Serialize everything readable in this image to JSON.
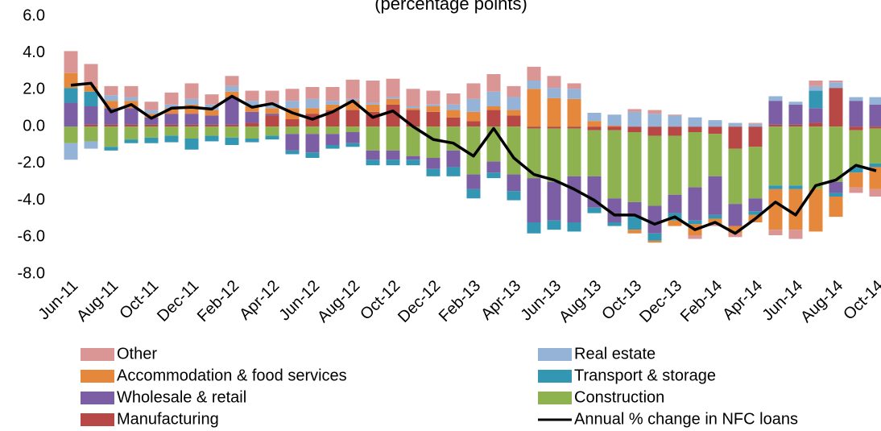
{
  "chart_data": {
    "type": "bar",
    "title": "(percentage points)",
    "categories": [
      "Jun-11",
      null,
      "Aug-11",
      null,
      "Oct-11",
      null,
      "Dec-11",
      null,
      "Feb-12",
      null,
      "Apr-12",
      null,
      "Jun-12",
      null,
      "Aug-12",
      null,
      "Oct-12",
      null,
      "Dec-12",
      null,
      "Feb-13",
      null,
      "Apr-13",
      null,
      "Jun-13",
      null,
      "Aug-13",
      null,
      "Oct-13",
      null,
      "Dec-13",
      null,
      "Feb-14",
      null,
      "Apr-14",
      null,
      "Jun-14",
      null,
      "Aug-14",
      null,
      "Oct-14"
    ],
    "stacked": true,
    "series": [
      {
        "name": "Other",
        "color": "#d99694",
        "values": [
          1.2,
          1.2,
          0.5,
          0.6,
          0.45,
          0.65,
          0.85,
          0.55,
          0.55,
          0.55,
          0.65,
          0.65,
          0.65,
          0.75,
          1.05,
          1.2,
          1.0,
          0.95,
          0.75,
          0.6,
          0.85,
          0.95,
          0.6,
          0.75,
          0.65,
          0.3,
          0,
          0,
          0.15,
          0.2,
          0.05,
          -0.2,
          -0.1,
          -0.2,
          0.05,
          -0.3,
          -0.5,
          0.3,
          0.1,
          -0.3,
          -0.4
        ]
      },
      {
        "name": "Real estate",
        "color": "#95b3d7",
        "values": [
          -0.9,
          -0.4,
          0.3,
          0.2,
          0.2,
          0.2,
          0.3,
          0.3,
          0.3,
          0.3,
          0.3,
          0.4,
          0.5,
          0.2,
          0.1,
          0.1,
          0.1,
          0.1,
          0.1,
          0.3,
          0.7,
          0.8,
          0.7,
          0.45,
          0.55,
          0.55,
          0.45,
          0.6,
          0.8,
          0.7,
          0.6,
          0.5,
          0.35,
          0.2,
          0.15,
          0.25,
          0.15,
          0.25,
          0.3,
          0.2,
          0.4
        ]
      },
      {
        "name": "Accommodation & food services",
        "color": "#e5883c",
        "values": [
          0.8,
          0.3,
          0.4,
          0.4,
          0.2,
          0.3,
          0.5,
          0.3,
          0.3,
          0.3,
          0.3,
          0.6,
          0.3,
          0.3,
          0.5,
          0.4,
          0.3,
          0.1,
          0.3,
          0.4,
          0.5,
          0.2,
          0.3,
          2.05,
          1.55,
          1.5,
          0.3,
          0.05,
          -0.2,
          -0.1,
          -0.3,
          -0.6,
          -0.3,
          -0.4,
          -0.4,
          -2.2,
          -2.2,
          -2.3,
          -1.1,
          -0.8,
          -1.2
        ]
      },
      {
        "name": "Transport & storage",
        "color": "#3397b3",
        "values": [
          0.8,
          0.8,
          -0.2,
          -0.2,
          -0.3,
          -0.35,
          -0.6,
          -0.3,
          -0.4,
          -0.2,
          -0.2,
          -0.2,
          -0.3,
          -0.2,
          -0.2,
          -0.3,
          -0.3,
          -0.3,
          -0.4,
          -0.5,
          -0.5,
          -0.3,
          -0.5,
          -0.6,
          -0.5,
          -0.5,
          -0.3,
          -0.2,
          -0.7,
          -0.4,
          -0.4,
          -0.2,
          -0.2,
          0,
          -0.2,
          -0.2,
          -0.2,
          0.95,
          -0.2,
          -0.3,
          -0.2
        ]
      },
      {
        "name": "Wholesale & retail",
        "color": "#7b5ea3",
        "values": [
          1.3,
          1.0,
          0.9,
          0.9,
          0.4,
          0.6,
          0.6,
          0.5,
          1.5,
          0.6,
          0.1,
          -0.9,
          -1.0,
          -0.6,
          -0.6,
          -0.5,
          -0.5,
          -0.2,
          -0.6,
          -0.9,
          -0.8,
          -0.6,
          -0.9,
          -2.4,
          -2.1,
          -2.5,
          -1.7,
          -1.3,
          -0.8,
          -1.5,
          -1.0,
          -1.8,
          -2.1,
          -1.2,
          -0.7,
          1.3,
          1.1,
          0.8,
          -0.6,
          1.4,
          1.2
        ]
      },
      {
        "name": "Construction",
        "color": "#8db24f",
        "values": [
          -0.9,
          -0.8,
          -1.1,
          -0.7,
          -0.6,
          -0.5,
          -0.65,
          -0.5,
          -0.6,
          -0.65,
          -0.5,
          -0.4,
          -0.4,
          -0.4,
          -0.3,
          -1.3,
          -1.3,
          -1.6,
          -1.7,
          -1.3,
          -2.6,
          -1.9,
          -2.6,
          -2.7,
          -2.9,
          -2.6,
          -2.5,
          -3.7,
          -3.8,
          -3.8,
          -3.2,
          -3.0,
          -2.3,
          -3.0,
          -2.8,
          -3.2,
          -3.2,
          -3.4,
          -3.0,
          -2.0,
          -1.9
        ]
      },
      {
        "name": "Manufacturing",
        "color": "#b84845",
        "values": [
          0,
          0.1,
          0.1,
          0.1,
          0.1,
          0.1,
          0.1,
          0.1,
          0.1,
          0.2,
          0.6,
          0.4,
          0.7,
          0.9,
          0.9,
          0.8,
          1.2,
          0.9,
          0.8,
          0.5,
          0.3,
          0.9,
          0.6,
          -0.1,
          -0.1,
          -0.1,
          -0.2,
          -0.2,
          -0.3,
          -0.5,
          -0.5,
          -0.3,
          -0.4,
          -1.2,
          -1.1,
          0.1,
          0.1,
          0.2,
          2.1,
          -0.2,
          -0.1
        ]
      },
      {
        "name": "Annual % change in NFC loans",
        "type": "line",
        "color": "#000000",
        "values": [
          2.25,
          2.35,
          0.8,
          1.2,
          0.45,
          1.0,
          1.05,
          0.95,
          1.65,
          1.05,
          1.25,
          0.75,
          0.4,
          0.8,
          1.4,
          0.5,
          0.85,
          0.0,
          -0.7,
          -0.9,
          -1.6,
          -0.1,
          -1.7,
          -2.6,
          -2.9,
          -3.4,
          -4.0,
          -4.8,
          -4.8,
          -5.3,
          -4.9,
          -5.6,
          -5.2,
          -5.8,
          -5.0,
          -4.1,
          -4.8,
          -3.2,
          -2.9,
          -2.1,
          -2.4
        ]
      }
    ],
    "ylim": [
      -8,
      6
    ],
    "yticks": [
      {
        "value": -8,
        "label": "-8.0"
      },
      {
        "value": -6,
        "label": "-6.0"
      },
      {
        "value": -4,
        "label": "-4.0"
      },
      {
        "value": -2,
        "label": "-2.0"
      },
      {
        "value": 0,
        "label": "0.0"
      },
      {
        "value": 2,
        "label": "2.0"
      },
      {
        "value": 4,
        "label": "4.0"
      },
      {
        "value": 6,
        "label": "6.0"
      }
    ],
    "grid": false,
    "legend": "bottom"
  }
}
